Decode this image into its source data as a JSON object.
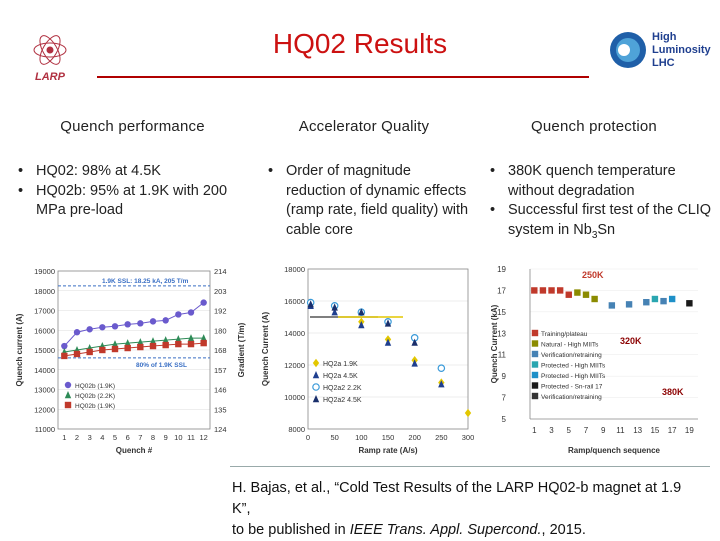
{
  "slide": {
    "title": "HQ02 Results",
    "larp_logo_text": "LARP",
    "hl_logo_lines": [
      "High",
      "Luminosity",
      "LHC"
    ]
  },
  "columns": [
    {
      "heading": "Quench performance",
      "bullets": [
        "HQ02: 98% at 4.5K",
        "HQ02b: 95% at 1.9K with 200 MPa pre-load"
      ]
    },
    {
      "heading": "Accelerator Quality",
      "bullets": [
        "Order of magnitude reduction of dynamic effects (ramp rate, field quality) with cable core"
      ]
    },
    {
      "heading": "Quench protection",
      "bullets": [
        "380K quench temperature without degradation",
        "Successful first test of the CLIQ system in Nb"
      ],
      "bullet2_sub": "3",
      "bullet2_tail": "Sn"
    }
  ],
  "citation": {
    "line1": "H. Bajas, et al., “Cold Test Results of the LARP HQ02-b magnet at 1.9 K”,",
    "line2_pre": "to be published in ",
    "line2_italic": "IEEE Trans. Appl. Supercond.",
    "line2_post": ", 2015."
  },
  "chart_data": [
    {
      "type": "line",
      "xlabel": "Quench #",
      "ylabel": "Quench current (A)",
      "y2label": "Gradient (T/m)",
      "ylim": [
        11000,
        19000
      ],
      "yticks": [
        11000,
        12000,
        13000,
        14000,
        15000,
        16000,
        17000,
        18000,
        19000
      ],
      "y2ticks": [
        124,
        135,
        146,
        157,
        168,
        180,
        192,
        203,
        214
      ],
      "xticks": [
        1,
        2,
        3,
        4,
        5,
        6,
        7,
        8,
        9,
        10,
        11,
        12
      ],
      "annotations": [
        "1.9K SSL: 18.25 kA, 205 T/m",
        "80% of 1.9K SSL"
      ],
      "reference_lines": [
        18250,
        14600
      ],
      "series": [
        {
          "name": "HQ02b (1.9K)",
          "color": "#6a5acd",
          "marker": "circle",
          "x": [
            1,
            2,
            3,
            4,
            5,
            6,
            7,
            8,
            9,
            10,
            11,
            12
          ],
          "y": [
            15200,
            15900,
            16050,
            16150,
            16200,
            16300,
            16350,
            16450,
            16500,
            16800,
            16900,
            17400
          ]
        },
        {
          "name": "HQ02b (2.2K)",
          "color": "#2e8b57",
          "marker": "triangle",
          "x": [
            1,
            2,
            3,
            4,
            5,
            6,
            7,
            8,
            9,
            10,
            11,
            12
          ],
          "y": [
            14900,
            15000,
            15100,
            15200,
            15300,
            15350,
            15400,
            15450,
            15500,
            15550,
            15600,
            15600
          ]
        },
        {
          "name": "HQ02b (1.9K)",
          "color": "#c0392b",
          "marker": "square",
          "x": [
            1,
            2,
            3,
            4,
            5,
            6,
            7,
            8,
            9,
            10,
            11,
            12
          ],
          "y": [
            14700,
            14800,
            14900,
            15000,
            15050,
            15100,
            15150,
            15200,
            15250,
            15300,
            15300,
            15350
          ]
        }
      ]
    },
    {
      "type": "scatter",
      "xlabel": "Ramp rate (A/s)",
      "ylabel": "Quench Current (A)",
      "xlim": [
        0,
        300
      ],
      "ylim": [
        8000,
        18000
      ],
      "yticks": [
        8000,
        10000,
        12000,
        14000,
        16000,
        18000
      ],
      "xticks": [
        0,
        50,
        100,
        150,
        200,
        250,
        300
      ],
      "series": [
        {
          "name": "HQ2a 1.9K",
          "color": "#e3c700",
          "marker": "diamond",
          "x": [
            5,
            50,
            100,
            150,
            200,
            250,
            300
          ],
          "y": [
            15800,
            15600,
            14700,
            13600,
            12300,
            10900,
            9000
          ]
        },
        {
          "name": "HQ2a 4.5K",
          "color": "#1f3f8f",
          "marker": "triangle",
          "x": [
            5,
            50,
            100,
            150,
            200,
            250
          ],
          "y": [
            15700,
            15300,
            14500,
            13400,
            12100,
            10800
          ]
        },
        {
          "name": "HQ2a2 2.2K",
          "color": "#3a9ad9",
          "marker": "circle-open",
          "x": [
            5,
            50,
            100,
            150,
            200,
            250
          ],
          "y": [
            15900,
            15700,
            15300,
            14700,
            13700,
            11800
          ]
        },
        {
          "name": "HQ2a2 4.5K",
          "color": "#1a2f6b",
          "marker": "triangle",
          "x": [
            5,
            50,
            100,
            150,
            200
          ],
          "y": [
            15800,
            15600,
            15300,
            14600,
            13400
          ]
        }
      ]
    },
    {
      "type": "scatter",
      "xlabel": "Ramp/quench sequence",
      "ylabel": "Quench Current (kA)",
      "ylim": [
        5,
        19
      ],
      "yticks": [
        5,
        7,
        9,
        11,
        13,
        15,
        17,
        19
      ],
      "xticks": [
        1,
        3,
        5,
        7,
        9,
        11,
        13,
        15,
        17,
        19
      ],
      "annotations": [
        "250K",
        "320K",
        "380K"
      ],
      "series": [
        {
          "name": "Training/plateau",
          "color": "#c0392b",
          "marker": "square",
          "x": [
            1,
            2,
            3,
            4,
            5
          ],
          "y": [
            17.0,
            17.0,
            17.0,
            17.0,
            16.6
          ]
        },
        {
          "name": "Natural - High MIITs",
          "color": "#8b8b00",
          "marker": "square",
          "x": [
            6,
            7,
            8
          ],
          "y": [
            16.8,
            16.6,
            16.2
          ]
        },
        {
          "name": "Verification/retraining",
          "color": "#4682b4",
          "marker": "square",
          "x": [
            10,
            12,
            14,
            16
          ],
          "y": [
            15.6,
            15.7,
            15.9,
            16.0
          ]
        },
        {
          "name": "Protected - High MIITs",
          "color": "#2aa6b0",
          "marker": "square",
          "x": [
            15
          ],
          "y": [
            16.2
          ]
        },
        {
          "name": "Protected - High MIITs",
          "color": "#1e90c8",
          "marker": "square",
          "x": [
            17
          ],
          "y": [
            16.2
          ]
        },
        {
          "name": "Protected - Sn-rail 17",
          "color": "#1a1a1a",
          "marker": "square",
          "x": [
            19
          ],
          "y": [
            15.8
          ]
        },
        {
          "name": "Verification/retraining",
          "color": "#333333",
          "marker": "square",
          "x": [],
          "y": []
        }
      ]
    }
  ]
}
